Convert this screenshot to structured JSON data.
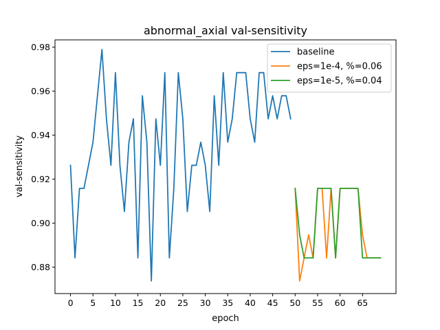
{
  "chart_data": {
    "type": "line",
    "title": "abnormal_axial val-sensitivity",
    "xlabel": "epoch",
    "ylabel": "val-sensitivity",
    "xlim": [
      -3.45,
      72.45
    ],
    "ylim": [
      0.868,
      0.9833
    ],
    "xticks": [
      0,
      5,
      10,
      15,
      20,
      25,
      30,
      35,
      40,
      45,
      50,
      55,
      60,
      65
    ],
    "yticks": [
      0.88,
      0.9,
      0.92,
      0.94,
      0.96,
      0.98
    ],
    "ytick_labels": [
      "0.88",
      "0.90",
      "0.92",
      "0.94",
      "0.96",
      "0.98"
    ],
    "legend_position": "top-right",
    "grid": false,
    "series": [
      {
        "name": "baseline",
        "color": "#1f77b4",
        "x": [
          0,
          1,
          2,
          3,
          4,
          5,
          6,
          7,
          8,
          9,
          10,
          11,
          12,
          13,
          14,
          15,
          16,
          17,
          18,
          19,
          20,
          21,
          22,
          23,
          24,
          25,
          26,
          27,
          28,
          29,
          30,
          31,
          32,
          33,
          34,
          35,
          36,
          37,
          38,
          39,
          40,
          41,
          42,
          43,
          44,
          45,
          46,
          47,
          48,
          49
        ],
        "values": [
          0.9263,
          0.8842,
          0.9158,
          0.9158,
          0.9263,
          0.9368,
          0.9579,
          0.9789,
          0.9474,
          0.9263,
          0.9684,
          0.9263,
          0.9053,
          0.9368,
          0.9474,
          0.8842,
          0.9579,
          0.9368,
          0.8737,
          0.9474,
          0.9263,
          0.9684,
          0.8842,
          0.9158,
          0.9684,
          0.9474,
          0.9053,
          0.9263,
          0.9263,
          0.9368,
          0.9263,
          0.9053,
          0.9579,
          0.9263,
          0.9684,
          0.9368,
          0.9474,
          0.9684,
          0.9684,
          0.9684,
          0.9474,
          0.9368,
          0.9684,
          0.9684,
          0.9474,
          0.9579,
          0.9474,
          0.9579,
          0.9579,
          0.9474
        ]
      },
      {
        "name": "eps=1e-4, %=0.06",
        "color": "#ff7f0e",
        "x": [
          50,
          51,
          52,
          53,
          54,
          55,
          56,
          57,
          58,
          59,
          60,
          61,
          62,
          63,
          64,
          65,
          66,
          67,
          68,
          69
        ],
        "values": [
          0.9158,
          0.8737,
          0.8842,
          0.8947,
          0.8842,
          0.9158,
          0.9158,
          0.8842,
          0.9158,
          0.8842,
          0.9158,
          0.9158,
          0.9158,
          0.9158,
          0.9158,
          0.8947,
          0.8842,
          0.8842,
          0.8842,
          0.8842
        ]
      },
      {
        "name": "eps=1e-5, %=0.04",
        "color": "#2ca02c",
        "x": [
          50,
          51,
          52,
          53,
          54,
          55,
          56,
          57,
          58,
          59,
          60,
          61,
          62,
          63,
          64,
          65,
          66,
          67,
          68,
          69
        ],
        "values": [
          0.9158,
          0.8947,
          0.8842,
          0.8842,
          0.8842,
          0.9158,
          0.9158,
          0.9158,
          0.9158,
          0.8842,
          0.9158,
          0.9158,
          0.9158,
          0.9158,
          0.9158,
          0.8842,
          0.8842,
          0.8842,
          0.8842,
          0.8842
        ]
      }
    ]
  }
}
